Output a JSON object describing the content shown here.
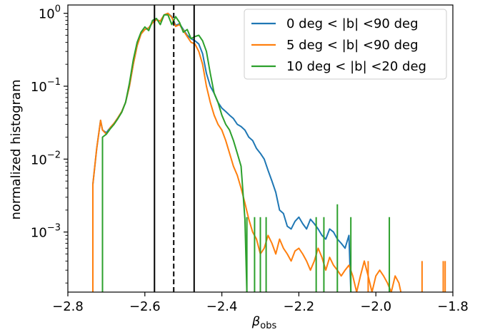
{
  "chart_data": {
    "type": "line",
    "xlabel": "β",
    "xlabel_sub": "obs",
    "ylabel": "normalized histogram",
    "xlim": [
      -2.8,
      -1.8
    ],
    "ylim": [
      0.00015,
      1.3
    ],
    "yscale": "log",
    "x_ticks": [
      {
        "value": -2.8,
        "label": "−2.8"
      },
      {
        "value": -2.6,
        "label": "−2.6"
      },
      {
        "value": -2.4,
        "label": "−2.4"
      },
      {
        "value": -2.2,
        "label": "−2.2"
      },
      {
        "value": -2.0,
        "label": "−2.0"
      },
      {
        "value": -1.8,
        "label": "−1.8"
      }
    ],
    "y_ticks": [
      {
        "value": 1,
        "base": "10",
        "exp": "0"
      },
      {
        "value": 0.1,
        "base": "10",
        "exp": "−1"
      },
      {
        "value": 0.01,
        "base": "10",
        "exp": "−2"
      },
      {
        "value": 0.001,
        "base": "10",
        "exp": "−3"
      }
    ],
    "vlines": [
      {
        "x": -2.575,
        "style": "solid"
      },
      {
        "x": -2.525,
        "style": "dashed"
      },
      {
        "x": -2.472,
        "style": "solid"
      }
    ],
    "legend_position": "top-right",
    "series": [
      {
        "name": "0 deg < |b| <90 deg",
        "color": "#1f77b4",
        "x": [
          -2.735,
          -2.735,
          -2.725,
          -2.715,
          -2.71,
          -2.7,
          -2.695,
          -2.69,
          -2.68,
          -2.67,
          -2.66,
          -2.65,
          -2.64,
          -2.63,
          -2.62,
          -2.61,
          -2.6,
          -2.59,
          -2.58,
          -2.57,
          -2.56,
          -2.55,
          -2.54,
          -2.53,
          -2.52,
          -2.51,
          -2.5,
          -2.49,
          -2.48,
          -2.47,
          -2.46,
          -2.45,
          -2.44,
          -2.43,
          -2.42,
          -2.41,
          -2.4,
          -2.39,
          -2.38,
          -2.37,
          -2.36,
          -2.35,
          -2.34,
          -2.33,
          -2.32,
          -2.31,
          -2.3,
          -2.29,
          -2.28,
          -2.27,
          -2.26,
          -2.25,
          -2.24,
          -2.23,
          -2.22,
          -2.21,
          -2.2,
          -2.19,
          -2.18,
          -2.17,
          -2.16,
          -2.15,
          -2.14,
          -2.13,
          -2.12,
          -2.11,
          -2.1,
          -2.09,
          -2.08,
          -2.07,
          -2.065
        ],
        "y": [
          0.00015,
          0.0045,
          0.014,
          0.034,
          0.025,
          0.023,
          0.025,
          0.027,
          0.031,
          0.037,
          0.045,
          0.06,
          0.1,
          0.2,
          0.36,
          0.52,
          0.6,
          0.63,
          0.75,
          0.82,
          0.78,
          0.95,
          1.0,
          0.9,
          0.68,
          0.72,
          0.6,
          0.5,
          0.45,
          0.42,
          0.38,
          0.28,
          0.15,
          0.1,
          0.08,
          0.06,
          0.05,
          0.045,
          0.04,
          0.036,
          0.03,
          0.028,
          0.025,
          0.02,
          0.018,
          0.014,
          0.012,
          0.01,
          0.007,
          0.005,
          0.0035,
          0.002,
          0.0018,
          0.0012,
          0.0011,
          0.0014,
          0.0016,
          0.0013,
          0.0011,
          0.0015,
          0.0013,
          0.0011,
          0.0009,
          0.0008,
          0.0011,
          0.001,
          0.0008,
          0.0007,
          0.0006,
          0.0009,
          0.00015
        ]
      },
      {
        "name": "5 deg < |b| <90 deg",
        "color": "#ff7f0e",
        "x": [
          -2.735,
          -2.735,
          -2.725,
          -2.715,
          -2.71,
          -2.7,
          -2.695,
          -2.69,
          -2.68,
          -2.67,
          -2.66,
          -2.65,
          -2.64,
          -2.63,
          -2.62,
          -2.61,
          -2.6,
          -2.59,
          -2.58,
          -2.57,
          -2.56,
          -2.55,
          -2.54,
          -2.53,
          -2.52,
          -2.51,
          -2.5,
          -2.49,
          -2.48,
          -2.47,
          -2.46,
          -2.45,
          -2.44,
          -2.43,
          -2.42,
          -2.41,
          -2.4,
          -2.39,
          -2.38,
          -2.37,
          -2.36,
          -2.35,
          -2.34,
          -2.33,
          -2.32,
          -2.31,
          -2.3,
          -2.29,
          -2.28,
          -2.27,
          -2.26,
          -2.25,
          -2.24,
          -2.23,
          -2.22,
          -2.21,
          -2.2,
          -2.19,
          -2.18,
          -2.17,
          -2.16,
          -2.15,
          -2.14,
          -2.13,
          -2.12,
          -2.11,
          -2.1,
          -2.09,
          -2.08,
          -2.07,
          -2.06,
          -2.05,
          -2.04,
          -2.03,
          -2.02,
          -2.01,
          -2.0,
          -1.99,
          -1.98,
          -1.97,
          -1.96,
          -1.95,
          -1.94,
          -1.935
        ],
        "y": [
          0.00015,
          0.0045,
          0.014,
          0.034,
          0.025,
          0.022,
          0.024,
          0.027,
          0.031,
          0.037,
          0.045,
          0.06,
          0.1,
          0.2,
          0.36,
          0.52,
          0.6,
          0.63,
          0.74,
          0.82,
          0.78,
          0.95,
          1.0,
          0.88,
          0.66,
          0.7,
          0.58,
          0.48,
          0.4,
          0.38,
          0.3,
          0.2,
          0.1,
          0.06,
          0.04,
          0.03,
          0.025,
          0.018,
          0.012,
          0.008,
          0.006,
          0.004,
          0.0025,
          0.0015,
          0.001,
          0.0008,
          0.0005,
          0.0006,
          0.0009,
          0.0007,
          0.0005,
          0.0008,
          0.0006,
          0.0005,
          0.0004,
          0.00055,
          0.0006,
          0.0005,
          0.0004,
          0.0003,
          0.0004,
          0.0006,
          0.00045,
          0.0003,
          0.00045,
          0.00035,
          0.0003,
          0.00025,
          0.0003,
          0.00035,
          0.00025,
          0.00015,
          0.00025,
          0.0004,
          0.00025,
          0.00015,
          0.00025,
          0.0003,
          0.00025,
          0.0002,
          0.00015,
          0.00025,
          0.0002,
          0.00015
        ]
      },
      {
        "name": "10 deg < |b| <20 deg",
        "color": "#2ca02c",
        "x": [
          -2.71,
          -2.71,
          -2.7,
          -2.69,
          -2.68,
          -2.67,
          -2.66,
          -2.65,
          -2.64,
          -2.63,
          -2.62,
          -2.61,
          -2.6,
          -2.59,
          -2.58,
          -2.57,
          -2.56,
          -2.55,
          -2.54,
          -2.53,
          -2.52,
          -2.51,
          -2.5,
          -2.49,
          -2.48,
          -2.47,
          -2.46,
          -2.45,
          -2.44,
          -2.43,
          -2.42,
          -2.41,
          -2.4,
          -2.39,
          -2.38,
          -2.37,
          -2.36,
          -2.35,
          -2.34,
          -2.335
        ],
        "y": [
          0.00015,
          0.02,
          0.022,
          0.026,
          0.03,
          0.036,
          0.044,
          0.06,
          0.11,
          0.23,
          0.4,
          0.55,
          0.65,
          0.58,
          0.8,
          0.85,
          0.7,
          0.95,
          0.95,
          0.7,
          0.9,
          0.75,
          0.55,
          0.6,
          0.45,
          0.48,
          0.5,
          0.42,
          0.3,
          0.15,
          0.08,
          0.06,
          0.04,
          0.03,
          0.025,
          0.018,
          0.012,
          0.008,
          0.0015,
          0.00015
        ]
      }
    ],
    "spikes": [
      {
        "x": -2.335,
        "top": 0.0016,
        "color": "#2ca02c"
      },
      {
        "x": -2.315,
        "top": 0.0016,
        "color": "#2ca02c"
      },
      {
        "x": -2.3,
        "top": 0.0016,
        "color": "#2ca02c"
      },
      {
        "x": -2.285,
        "top": 0.0016,
        "color": "#2ca02c"
      },
      {
        "x": -2.155,
        "top": 0.0016,
        "color": "#2ca02c"
      },
      {
        "x": -2.135,
        "top": 0.0016,
        "color": "#2ca02c"
      },
      {
        "x": -2.1,
        "top": 0.0024,
        "color": "#2ca02c"
      },
      {
        "x": -2.065,
        "top": 0.0016,
        "color": "#2ca02c"
      },
      {
        "x": -1.965,
        "top": 0.0016,
        "color": "#2ca02c"
      },
      {
        "x": -2.02,
        "top": 0.0004,
        "color": "#ff7f0e"
      },
      {
        "x": -1.88,
        "top": 0.0004,
        "color": "#ff7f0e"
      },
      {
        "x": -1.825,
        "top": 0.0004,
        "color": "#ff7f0e"
      },
      {
        "x": -1.82,
        "top": 0.0004,
        "color": "#ff7f0e"
      }
    ]
  }
}
